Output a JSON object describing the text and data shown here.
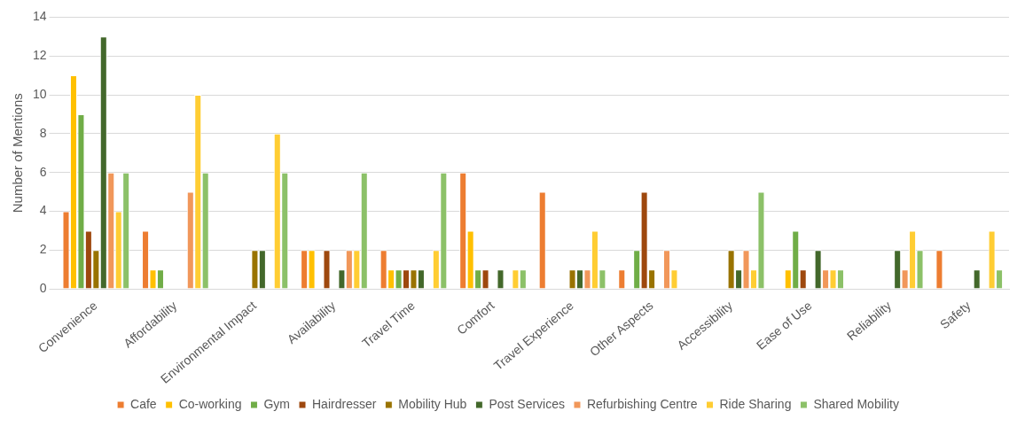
{
  "chart_data": {
    "type": "bar",
    "ylabel": "Number of Mentions",
    "categories": [
      "Convenience",
      "Affordability",
      "Environmental Impact",
      "Availability",
      "Travel Time",
      "Comfort",
      "Travel Experience",
      "Other Aspects",
      "Accessibility",
      "Ease of Use",
      "Reliability",
      "Safety"
    ],
    "series": [
      {
        "name": "Cafe",
        "color": "#ed7d31",
        "values": [
          4,
          3,
          null,
          2,
          2,
          6,
          5,
          1,
          null,
          null,
          null,
          2
        ]
      },
      {
        "name": "Co-working",
        "color": "#ffc000",
        "values": [
          11,
          1,
          null,
          2,
          1,
          3,
          null,
          null,
          null,
          1,
          null,
          null
        ]
      },
      {
        "name": "Gym",
        "color": "#70ad47",
        "values": [
          9,
          1,
          null,
          null,
          1,
          1,
          null,
          2,
          null,
          3,
          null,
          null
        ]
      },
      {
        "name": "Hairdresser",
        "color": "#9e480e",
        "values": [
          3,
          null,
          null,
          2,
          1,
          1,
          null,
          5,
          null,
          1,
          null,
          null
        ]
      },
      {
        "name": "Mobility Hub",
        "color": "#997300",
        "values": [
          2,
          null,
          2,
          null,
          1,
          null,
          1,
          1,
          2,
          null,
          null,
          null
        ]
      },
      {
        "name": "Post Services",
        "color": "#43682b",
        "values": [
          13,
          null,
          2,
          1,
          1,
          1,
          1,
          null,
          1,
          2,
          2,
          1
        ]
      },
      {
        "name": "Refurbishing Centre",
        "color": "#f1975a",
        "values": [
          6,
          5,
          null,
          2,
          null,
          null,
          1,
          2,
          2,
          1,
          1,
          null
        ]
      },
      {
        "name": "Ride Sharing",
        "color": "#ffcd33",
        "values": [
          4,
          10,
          8,
          2,
          2,
          1,
          3,
          1,
          1,
          1,
          3,
          3
        ]
      },
      {
        "name": "Shared Mobility",
        "color": "#8cc168",
        "values": [
          6,
          6,
          6,
          6,
          6,
          1,
          1,
          null,
          5,
          1,
          2,
          1
        ]
      }
    ],
    "ylim": [
      0,
      14
    ],
    "yticks": [
      0,
      2,
      4,
      6,
      8,
      10,
      12,
      14
    ],
    "grid": "y",
    "legend": "bottom"
  }
}
